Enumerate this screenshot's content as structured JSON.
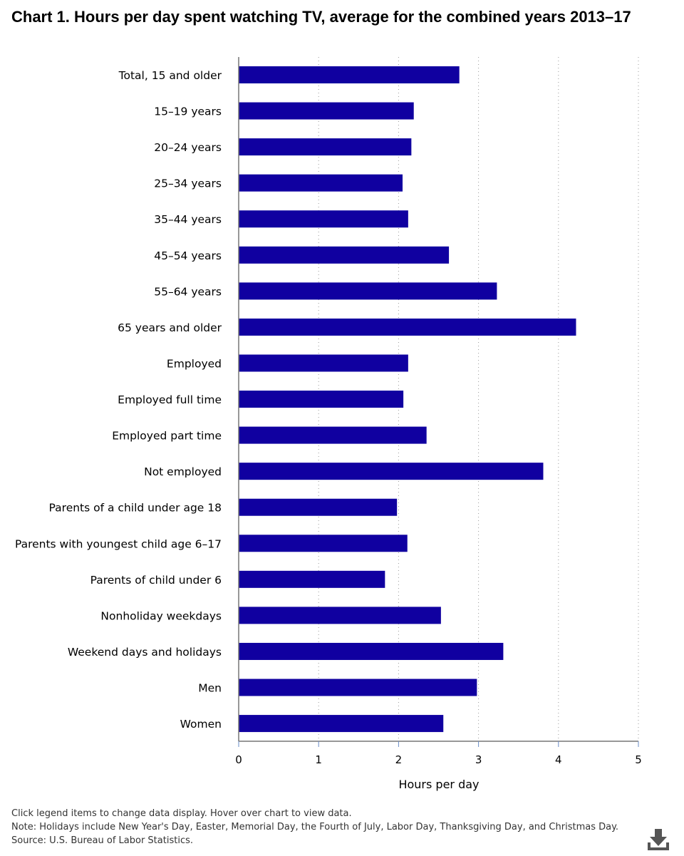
{
  "title": "Chart 1. Hours per day spent watching TV, average for the combined years 2013–17",
  "chart_data": {
    "type": "bar",
    "orientation": "horizontal",
    "title": "Chart 1. Hours per day spent watching TV, average for the combined years 2013–17",
    "xlabel": "Hours per day",
    "ylabel": "",
    "xlim": [
      0,
      5
    ],
    "xticks": [
      0,
      1,
      2,
      3,
      4,
      5
    ],
    "grid": "vertical dotted",
    "bar_color": "#1000a0",
    "categories": [
      "Total, 15 and older",
      "15–19 years",
      "20–24 years",
      "25–34 years",
      "35–44 years",
      "45–54 years",
      "55–64 years",
      "65 years and older",
      "Employed",
      "Employed full time",
      "Employed part time",
      "Not employed",
      "Parents of a child under age 18",
      "Parents with youngest child age 6–17",
      "Parents of child under 6",
      "Nonholiday weekdays",
      "Weekend days and holidays",
      "Men",
      "Women"
    ],
    "values": [
      2.76,
      2.19,
      2.16,
      2.05,
      2.12,
      2.63,
      3.23,
      4.22,
      2.12,
      2.06,
      2.35,
      3.81,
      1.98,
      2.11,
      1.83,
      2.53,
      3.31,
      2.98,
      2.56
    ]
  },
  "footer": {
    "instruction": "Click legend items to change data display. Hover over chart to view data.",
    "note": "Note: Holidays include New Year's Day, Easter, Memorial Day, the Fourth of July, Labor Day, Thanksgiving Day, and Christmas Day.",
    "source": "Source: U.S. Bureau of Labor Statistics."
  },
  "download_icon": "download-icon"
}
